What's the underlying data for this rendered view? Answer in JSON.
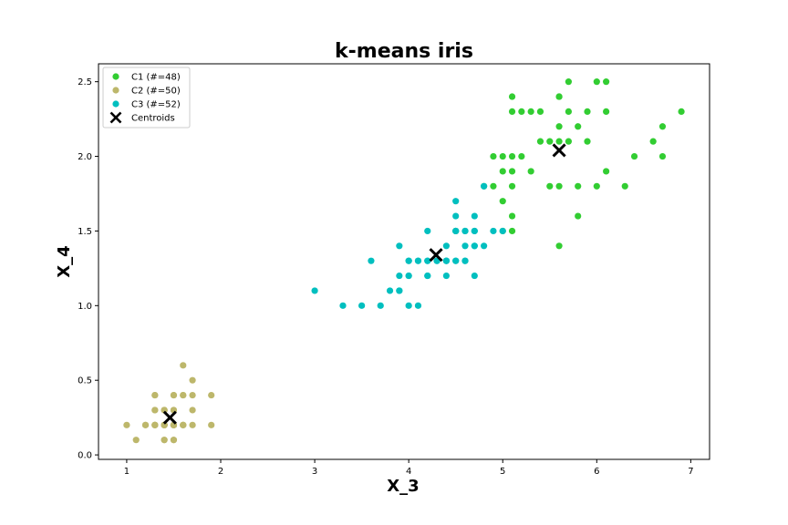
{
  "chart_data": {
    "type": "scatter",
    "title": "k-means iris",
    "xlabel": "X_3",
    "ylabel": "X_4",
    "xlim": [
      0.7,
      7.2
    ],
    "ylim": [
      -0.03,
      2.62
    ],
    "xticks": [
      1,
      2,
      3,
      4,
      5,
      6,
      7
    ],
    "xtick_labels": [
      "1",
      "2",
      "3",
      "4",
      "5",
      "6",
      "7"
    ],
    "yticks": [
      0.0,
      0.5,
      1.0,
      1.5,
      2.0,
      2.5
    ],
    "ytick_labels": [
      "0.0",
      "0.5",
      "1.0",
      "1.5",
      "2.0",
      "2.5"
    ],
    "grid": false,
    "legend_position": "top-left",
    "series": [
      {
        "name": "C1 (#=48)",
        "color": "#32cd32",
        "marker": "circle",
        "points": [
          [
            5.1,
            2.4
          ],
          [
            5.6,
            2.4
          ],
          [
            5.7,
            2.5
          ],
          [
            6.0,
            2.5
          ],
          [
            6.1,
            2.5
          ],
          [
            5.1,
            2.3
          ],
          [
            5.2,
            2.3
          ],
          [
            5.3,
            2.3
          ],
          [
            5.4,
            2.3
          ],
          [
            5.7,
            2.3
          ],
          [
            5.9,
            2.3
          ],
          [
            6.1,
            2.3
          ],
          [
            6.9,
            2.3
          ],
          [
            5.6,
            2.2
          ],
          [
            5.8,
            2.2
          ],
          [
            6.7,
            2.2
          ],
          [
            5.4,
            2.1
          ],
          [
            5.5,
            2.1
          ],
          [
            5.6,
            2.1
          ],
          [
            5.7,
            2.1
          ],
          [
            5.9,
            2.1
          ],
          [
            6.6,
            2.1
          ],
          [
            4.9,
            2.0
          ],
          [
            5.0,
            2.0
          ],
          [
            5.1,
            2.0
          ],
          [
            5.2,
            2.0
          ],
          [
            6.4,
            2.0
          ],
          [
            6.7,
            2.0
          ],
          [
            5.0,
            1.9
          ],
          [
            5.1,
            1.9
          ],
          [
            5.3,
            1.9
          ],
          [
            6.1,
            1.9
          ],
          [
            4.9,
            1.8
          ],
          [
            5.1,
            1.8
          ],
          [
            5.5,
            1.8
          ],
          [
            5.6,
            1.8
          ],
          [
            5.8,
            1.8
          ],
          [
            6.0,
            1.8
          ],
          [
            6.3,
            1.8
          ],
          [
            5.0,
            1.7
          ],
          [
            5.1,
            1.6
          ],
          [
            5.8,
            1.6
          ],
          [
            4.5,
            1.5
          ],
          [
            5.0,
            1.5
          ],
          [
            5.1,
            1.5
          ],
          [
            5.6,
            1.4
          ],
          [
            4.8,
            1.8
          ],
          [
            5.6,
            2.4
          ]
        ]
      },
      {
        "name": "C2 (#=50)",
        "color": "#bdb76b",
        "marker": "circle",
        "points": [
          [
            1.6,
            0.6
          ],
          [
            1.7,
            0.5
          ],
          [
            1.3,
            0.4
          ],
          [
            1.5,
            0.4
          ],
          [
            1.6,
            0.4
          ],
          [
            1.7,
            0.4
          ],
          [
            1.9,
            0.4
          ],
          [
            1.3,
            0.3
          ],
          [
            1.4,
            0.3
          ],
          [
            1.5,
            0.3
          ],
          [
            1.7,
            0.3
          ],
          [
            1.0,
            0.2
          ],
          [
            1.2,
            0.2
          ],
          [
            1.3,
            0.2
          ],
          [
            1.4,
            0.2
          ],
          [
            1.5,
            0.2
          ],
          [
            1.6,
            0.2
          ],
          [
            1.7,
            0.2
          ],
          [
            1.9,
            0.2
          ],
          [
            1.1,
            0.1
          ],
          [
            1.4,
            0.1
          ],
          [
            1.5,
            0.1
          ],
          [
            1.4,
            0.2
          ],
          [
            1.5,
            0.2
          ],
          [
            1.3,
            0.2
          ],
          [
            1.4,
            0.2
          ],
          [
            1.5,
            0.2
          ],
          [
            1.6,
            0.2
          ],
          [
            1.4,
            0.3
          ],
          [
            1.5,
            0.4
          ],
          [
            1.4,
            0.2
          ],
          [
            1.5,
            0.2
          ],
          [
            1.3,
            0.2
          ],
          [
            1.4,
            0.1
          ],
          [
            1.5,
            0.1
          ],
          [
            1.2,
            0.2
          ],
          [
            1.3,
            0.3
          ],
          [
            1.4,
            0.2
          ],
          [
            1.5,
            0.2
          ],
          [
            1.6,
            0.2
          ],
          [
            1.4,
            0.2
          ],
          [
            1.5,
            0.2
          ],
          [
            1.3,
            0.2
          ],
          [
            1.4,
            0.2
          ],
          [
            1.5,
            0.3
          ],
          [
            1.4,
            0.2
          ],
          [
            1.5,
            0.2
          ],
          [
            1.6,
            0.4
          ],
          [
            1.3,
            0.4
          ],
          [
            1.4,
            0.3
          ]
        ]
      },
      {
        "name": "C3 (#=52)",
        "color": "#00bfbf",
        "marker": "circle",
        "points": [
          [
            4.5,
            1.7
          ],
          [
            4.5,
            1.6
          ],
          [
            4.7,
            1.6
          ],
          [
            4.2,
            1.5
          ],
          [
            4.5,
            1.5
          ],
          [
            4.6,
            1.5
          ],
          [
            4.7,
            1.5
          ],
          [
            4.9,
            1.5
          ],
          [
            5.0,
            1.5
          ],
          [
            3.9,
            1.4
          ],
          [
            4.4,
            1.4
          ],
          [
            4.6,
            1.4
          ],
          [
            4.7,
            1.4
          ],
          [
            4.8,
            1.4
          ],
          [
            3.6,
            1.3
          ],
          [
            4.0,
            1.3
          ],
          [
            4.1,
            1.3
          ],
          [
            4.2,
            1.3
          ],
          [
            4.3,
            1.3
          ],
          [
            4.4,
            1.3
          ],
          [
            4.5,
            1.3
          ],
          [
            4.6,
            1.3
          ],
          [
            3.9,
            1.2
          ],
          [
            4.0,
            1.2
          ],
          [
            4.2,
            1.2
          ],
          [
            4.4,
            1.2
          ],
          [
            4.7,
            1.2
          ],
          [
            3.8,
            1.1
          ],
          [
            3.9,
            1.1
          ],
          [
            3.0,
            1.1
          ],
          [
            3.3,
            1.0
          ],
          [
            3.5,
            1.0
          ],
          [
            3.7,
            1.0
          ],
          [
            4.0,
            1.0
          ],
          [
            4.1,
            1.0
          ],
          [
            4.8,
            1.8
          ],
          [
            4.5,
            1.5
          ],
          [
            4.7,
            1.4
          ],
          [
            4.4,
            1.3
          ],
          [
            4.5,
            1.5
          ],
          [
            4.6,
            1.5
          ],
          [
            4.7,
            1.5
          ],
          [
            4.0,
            1.3
          ],
          [
            4.1,
            1.3
          ],
          [
            4.2,
            1.3
          ],
          [
            4.3,
            1.3
          ],
          [
            4.4,
            1.3
          ],
          [
            4.5,
            1.3
          ],
          [
            4.6,
            1.3
          ],
          [
            4.0,
            1.2
          ],
          [
            4.2,
            1.2
          ],
          [
            3.9,
            1.1
          ]
        ]
      },
      {
        "name": "Centroids",
        "color": "#000000",
        "marker": "x",
        "points": [
          [
            1.46,
            0.25
          ],
          [
            4.29,
            1.34
          ],
          [
            5.6,
            2.04
          ]
        ]
      }
    ]
  }
}
